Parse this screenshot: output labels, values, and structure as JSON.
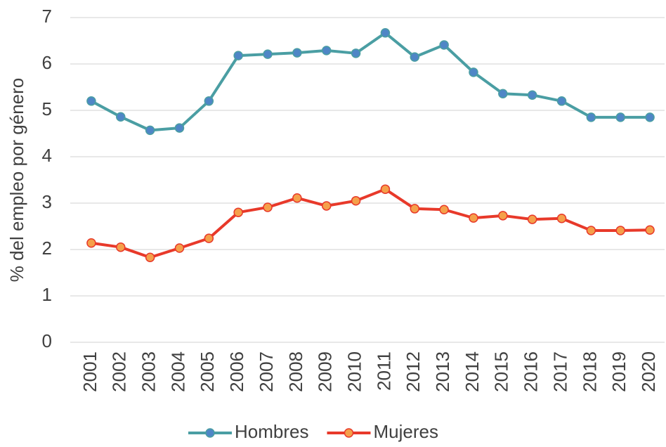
{
  "chart_data": {
    "type": "line",
    "y_label": "% del empleo por género",
    "categories": [
      "2001",
      "2002",
      "2003",
      "2004",
      "2005",
      "2006",
      "2007",
      "2008",
      "2009",
      "2010",
      "2011",
      "2012",
      "2013",
      "2014",
      "2015",
      "2016",
      "2017",
      "2018",
      "2019",
      "2020"
    ],
    "series": [
      {
        "name": "Hombres",
        "color": "#4a9ea3",
        "marker_color": "#4f86c6",
        "values": [
          5.2,
          4.86,
          4.57,
          4.62,
          5.2,
          6.18,
          6.21,
          6.24,
          6.29,
          6.23,
          6.67,
          6.15,
          6.41,
          5.82,
          5.36,
          5.33,
          5.2,
          4.85,
          4.85,
          4.85
        ]
      },
      {
        "name": "Mujeres",
        "color": "#e8392a",
        "marker_color": "#f5a04a",
        "values": [
          2.14,
          2.05,
          1.83,
          2.03,
          2.24,
          2.8,
          2.91,
          3.11,
          2.94,
          3.05,
          3.3,
          2.88,
          2.86,
          2.68,
          2.73,
          2.65,
          2.67,
          2.41,
          2.41,
          2.42
        ]
      }
    ],
    "ylim": [
      0,
      7
    ],
    "yticks": [
      0,
      1,
      2,
      3,
      4,
      5,
      6,
      7
    ],
    "grid": true,
    "legend": "bottom"
  }
}
